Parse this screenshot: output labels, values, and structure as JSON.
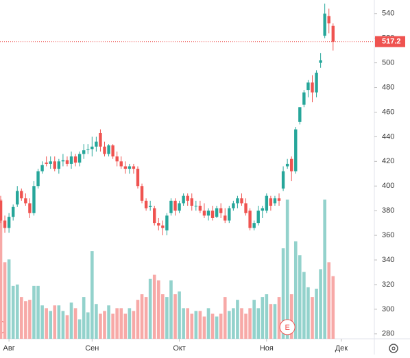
{
  "chart_data": {
    "type": "candlestick",
    "ohlc": [
      [
        388,
        392,
        370,
        372
      ],
      [
        372,
        376,
        362,
        366
      ],
      [
        366,
        378,
        362,
        375
      ],
      [
        375,
        385,
        372,
        383
      ],
      [
        385,
        400,
        383,
        396
      ],
      [
        396,
        398,
        388,
        390
      ],
      [
        390,
        394,
        384,
        386
      ],
      [
        386,
        390,
        374,
        378
      ],
      [
        378,
        404,
        376,
        400
      ],
      [
        400,
        414,
        398,
        412
      ],
      [
        412,
        420,
        410,
        417
      ],
      [
        419,
        424,
        416,
        418
      ],
      [
        418,
        424,
        414,
        420
      ],
      [
        420,
        424,
        412,
        414
      ],
      [
        414,
        422,
        410,
        420
      ],
      [
        420,
        426,
        416,
        421
      ],
      [
        421,
        424,
        416,
        418
      ],
      [
        418,
        428,
        414,
        424
      ],
      [
        424,
        426,
        416,
        419
      ],
      [
        419,
        428,
        416,
        426
      ],
      [
        426,
        434,
        422,
        429
      ],
      [
        430,
        434,
        426,
        430
      ],
      [
        430,
        440,
        424,
        432
      ],
      [
        432,
        440,
        428,
        436
      ],
      [
        443,
        446,
        428,
        432
      ],
      [
        432,
        436,
        424,
        426
      ],
      [
        426,
        434,
        424,
        433
      ],
      [
        433,
        434,
        422,
        424
      ],
      [
        424,
        428,
        416,
        420
      ],
      [
        420,
        424,
        414,
        416
      ],
      [
        416,
        420,
        410,
        414
      ],
      [
        414,
        418,
        410,
        416
      ],
      [
        416,
        418,
        410,
        414
      ],
      [
        414,
        416,
        398,
        400
      ],
      [
        400,
        402,
        386,
        388
      ],
      [
        388,
        390,
        380,
        382
      ],
      [
        383,
        388,
        380,
        384
      ],
      [
        382,
        384,
        368,
        370
      ],
      [
        370,
        374,
        364,
        368
      ],
      [
        368,
        372,
        360,
        366
      ],
      [
        364,
        378,
        360,
        376
      ],
      [
        378,
        390,
        376,
        388
      ],
      [
        388,
        390,
        376,
        380
      ],
      [
        380,
        388,
        378,
        386
      ],
      [
        386,
        394,
        384,
        392
      ],
      [
        392,
        394,
        384,
        388
      ],
      [
        390,
        394,
        380,
        384
      ],
      [
        384,
        388,
        380,
        384
      ],
      [
        384,
        388,
        378,
        380
      ],
      [
        380,
        386,
        374,
        376
      ],
      [
        376,
        382,
        372,
        380
      ],
      [
        380,
        384,
        372,
        374
      ],
      [
        375,
        384,
        374,
        382
      ],
      [
        382,
        386,
        374,
        378
      ],
      [
        376,
        382,
        370,
        372
      ],
      [
        372,
        384,
        370,
        382
      ],
      [
        382,
        388,
        380,
        386
      ],
      [
        386,
        392,
        382,
        390
      ],
      [
        390,
        394,
        384,
        386
      ],
      [
        386,
        390,
        376,
        378
      ],
      [
        380,
        382,
        364,
        366
      ],
      [
        366,
        372,
        364,
        370
      ],
      [
        370,
        384,
        368,
        380
      ],
      [
        380,
        384,
        374,
        382
      ],
      [
        380,
        394,
        378,
        392
      ],
      [
        390,
        392,
        380,
        384
      ],
      [
        386,
        392,
        384,
        390
      ],
      [
        390,
        394,
        384,
        388
      ],
      [
        398,
        416,
        396,
        412
      ],
      [
        416,
        422,
        414,
        418
      ],
      [
        422,
        424,
        404,
        412
      ],
      [
        412,
        448,
        410,
        446
      ],
      [
        452,
        464,
        450,
        464
      ],
      [
        466,
        478,
        464,
        476
      ],
      [
        478,
        486,
        472,
        484
      ],
      [
        484,
        490,
        468,
        476
      ],
      [
        476,
        494,
        472,
        492
      ],
      [
        500,
        508,
        496,
        502
      ],
      [
        522,
        548,
        520,
        540
      ],
      [
        538,
        544,
        524,
        532
      ],
      [
        530,
        532,
        510,
        517.2
      ]
    ],
    "volume": [
      100,
      55,
      57,
      38,
      39,
      30,
      27,
      28,
      38,
      38,
      24,
      22,
      20,
      24,
      24,
      20,
      17,
      26,
      22,
      14,
      30,
      19,
      63,
      25,
      18,
      20,
      24,
      18,
      22,
      22,
      18,
      22,
      20,
      28,
      32,
      30,
      43,
      46,
      42,
      32,
      30,
      42,
      32,
      34,
      22,
      22,
      18,
      20,
      20,
      16,
      22,
      18,
      16,
      18,
      30,
      20,
      22,
      28,
      22,
      18,
      22,
      28,
      22,
      30,
      32,
      25,
      25,
      30,
      65,
      100,
      32,
      70,
      60,
      48,
      37,
      30,
      36,
      50,
      100,
      55,
      45
    ],
    "volume_ylim": [
      0,
      100
    ],
    "up_color": "#26a69a",
    "down_color": "#ef5350",
    "up_volume_color": "#93d2cc",
    "down_volume_color": "#f7a9a7",
    "ylim": [
      276,
      551
    ],
    "yticks": [
      280,
      300,
      320,
      340,
      360,
      380,
      400,
      420,
      440,
      460,
      480,
      500,
      520,
      540
    ],
    "xticks": [
      {
        "value": 2,
        "label": "Авг"
      },
      {
        "value": 22,
        "label": "Сен"
      },
      {
        "value": 43,
        "label": "Окт"
      },
      {
        "value": 64,
        "label": "Ноя"
      },
      {
        "value": 82,
        "label": "Дек"
      }
    ],
    "last_price": 517.2,
    "events": [
      {
        "value": 69,
        "label": "E"
      }
    ]
  }
}
